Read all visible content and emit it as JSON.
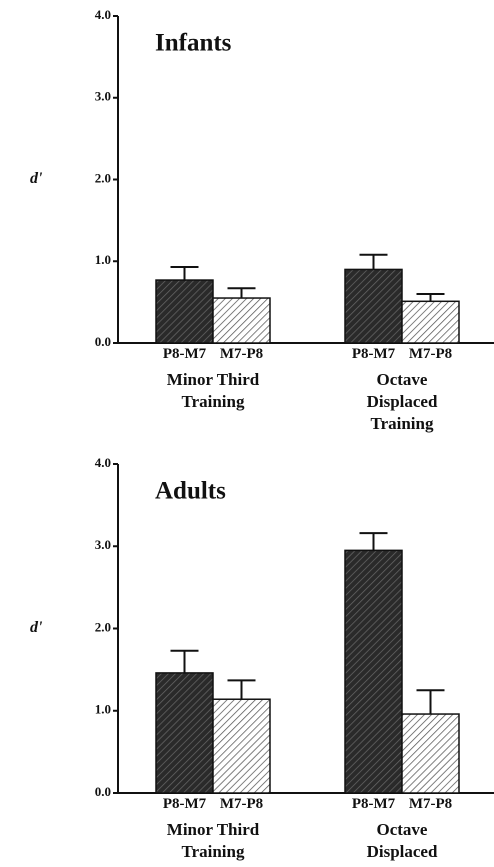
{
  "charts": [
    {
      "chart_data": {
        "type": "bar",
        "title": "Infants",
        "ylabel": "d'",
        "categories": [
          "Minor Third\nTraining",
          "Octave Displaced\nTraining"
        ],
        "series": [
          {
            "name": "P8-M7",
            "color": "#2a2a2a",
            "values": [
              0.77,
              0.9
            ],
            "errors": [
              0.16,
              0.18
            ]
          },
          {
            "name": "M7-P8",
            "color": "#d8d8d8",
            "values": [
              0.55,
              0.51
            ],
            "errors": [
              0.12,
              0.09
            ]
          }
        ],
        "ylim": [
          0,
          4
        ],
        "yticks": [
          {
            "value": 0,
            "label": "0.0"
          },
          {
            "value": 1,
            "label": "1.0"
          },
          {
            "value": 2,
            "label": "2.0"
          },
          {
            "value": 3,
            "label": "3.0"
          },
          {
            "value": 4,
            "label": "4.0"
          }
        ]
      }
    },
    {
      "chart_data": {
        "type": "bar",
        "title": "Adults",
        "ylabel": "d'",
        "categories": [
          "Minor Third\nTraining",
          "Octave Displaced\nTraining"
        ],
        "series": [
          {
            "name": "P8-M7",
            "color": "#2a2a2a",
            "values": [
              1.46,
              2.95
            ],
            "errors": [
              0.27,
              0.21
            ]
          },
          {
            "name": "M7-P8",
            "color": "#d8d8d8",
            "values": [
              1.14,
              0.96
            ],
            "errors": [
              0.23,
              0.29
            ]
          }
        ],
        "ylim": [
          0,
          4
        ],
        "yticks": [
          {
            "value": 0,
            "label": "0.0"
          },
          {
            "value": 1,
            "label": "1.0"
          },
          {
            "value": 2,
            "label": "2.0"
          },
          {
            "value": 3,
            "label": "3.0"
          },
          {
            "value": 4,
            "label": "4.0"
          }
        ]
      }
    }
  ]
}
